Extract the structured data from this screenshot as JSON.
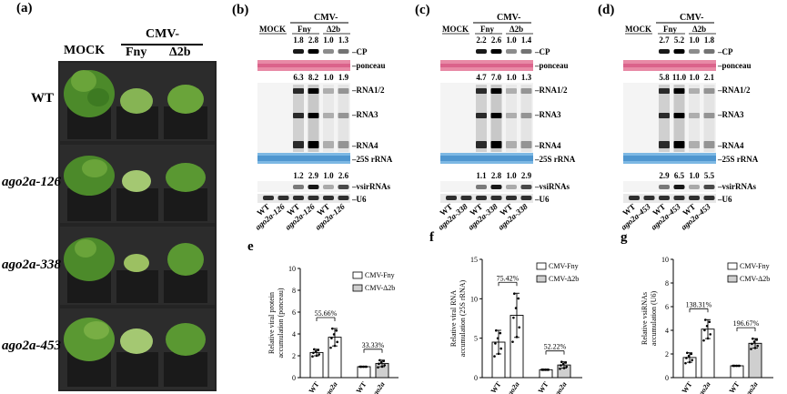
{
  "panel_a": {
    "label": "(a)",
    "group_header": "CMV-",
    "columns": [
      "MOCK",
      "Fny",
      "Δ2b"
    ],
    "rows": [
      "WT",
      "ago2a-126",
      "ago2a-338",
      "ago2a-453"
    ]
  },
  "blots": [
    {
      "label": "(b)",
      "header": "CMV-",
      "groups": [
        "MOCK",
        "Fny",
        "Δ2b"
      ],
      "cp_values": [
        "1.8",
        "2.8",
        "1.0",
        "1.3"
      ],
      "rna_values": [
        "6.3",
        "8.2",
        "1.0",
        "1.9"
      ],
      "sirna_values": [
        "1.2",
        "2.9",
        "1.0",
        "2.6"
      ],
      "lanes": [
        "WT",
        "ago2a-126",
        "WT",
        "ago2a-126",
        "WT",
        "ago2a-126"
      ],
      "band_labels": [
        "CP",
        "ponceau",
        "RNA1/2",
        "RNA3",
        "RNA4",
        "25S rRNA",
        "vsirRNAs",
        "U6"
      ]
    },
    {
      "label": "(c)",
      "header": "CMV-",
      "groups": [
        "MOCK",
        "Fny",
        "Δ2b"
      ],
      "cp_values": [
        "2.2",
        "2.6",
        "1.0",
        "1.4"
      ],
      "rna_values": [
        "4.7",
        "7.0",
        "1.0",
        "1.3"
      ],
      "sirna_values": [
        "1.1",
        "2.8",
        "1.0",
        "2.9"
      ],
      "lanes": [
        "WT",
        "ago2a-338",
        "WT",
        "ago2a-338",
        "WT",
        "ago2a-338"
      ],
      "band_labels": [
        "CP",
        "ponceau",
        "RNA1/2",
        "RNA3",
        "RNA4",
        "25S rRNA",
        "vsiRNAs",
        "U6"
      ]
    },
    {
      "label": "(d)",
      "header": "CMV-",
      "groups": [
        "MOCK",
        "Fny",
        "Δ2b"
      ],
      "cp_values": [
        "2.7",
        "5.2",
        "1.0",
        "1.8"
      ],
      "rna_values": [
        "5.8",
        "11.0",
        "1.0",
        "2.1"
      ],
      "sirna_values": [
        "2.9",
        "6.5",
        "1.0",
        "5.5"
      ],
      "lanes": [
        "WT",
        "ago2a-453",
        "WT",
        "ago2a-453",
        "WT",
        "ago2a-453"
      ],
      "band_labels": [
        "CP",
        "ponceau",
        "RNA1/2",
        "RNA3",
        "RNA4",
        "25S rRNA",
        "vsirRNAs",
        "U6"
      ]
    }
  ],
  "chart_data": [
    {
      "panel": "(e)",
      "type": "bar",
      "ylabel": "Relative viral protein accumulation (ponceau)",
      "ylim": [
        0,
        10
      ],
      "yticks": [
        "0",
        "2",
        "4",
        "6",
        "8",
        "10"
      ],
      "xtick_labels": [
        "WT",
        "ago2a",
        "WT",
        "ago2a"
      ],
      "series": [
        {
          "name": "CMV-Fny",
          "values": [
            2.3,
            3.7
          ],
          "errors": [
            0.3,
            0.8
          ]
        },
        {
          "name": "CMV-Δ2b",
          "values": [
            1.0,
            1.3
          ],
          "errors": [
            0.0,
            0.3
          ]
        }
      ],
      "annotations": [
        "55.66%",
        "33.33%"
      ],
      "legend": "top-right"
    },
    {
      "panel": "(f)",
      "type": "bar",
      "ylabel": "Relative viral RNA accumulation (25S rRNA)",
      "ylim": [
        0,
        15
      ],
      "yticks": [
        "0",
        "5",
        "10",
        "15"
      ],
      "xtick_labels": [
        "WT",
        "ago2a",
        "WT",
        "ago2a"
      ],
      "series": [
        {
          "name": "CMV-Fny",
          "values": [
            4.5,
            7.9
          ],
          "errors": [
            1.5,
            2.8
          ]
        },
        {
          "name": "CMV-Δ2b",
          "values": [
            1.0,
            1.6
          ],
          "errors": [
            0.0,
            0.4
          ]
        }
      ],
      "annotations": [
        "75.42%",
        "52.22%"
      ],
      "legend": "top-right"
    },
    {
      "panel": "(g)",
      "type": "bar",
      "ylabel": "Relative vsiRNAs accumulation (U6)",
      "ylim": [
        0,
        10
      ],
      "yticks": [
        "0",
        "2",
        "4",
        "6",
        "8",
        "10"
      ],
      "xtick_labels": [
        "WT",
        "ago2a",
        "WT",
        "ago2a"
      ],
      "series": [
        {
          "name": "CMV-Fny",
          "values": [
            1.7,
            4.1
          ],
          "errors": [
            0.4,
            0.8
          ]
        },
        {
          "name": "CMV-Δ2b",
          "values": [
            1.0,
            2.9
          ],
          "errors": [
            0.0,
            0.4
          ]
        }
      ],
      "annotations": [
        "138.31%",
        "196.67%"
      ],
      "legend": "top-right"
    }
  ]
}
